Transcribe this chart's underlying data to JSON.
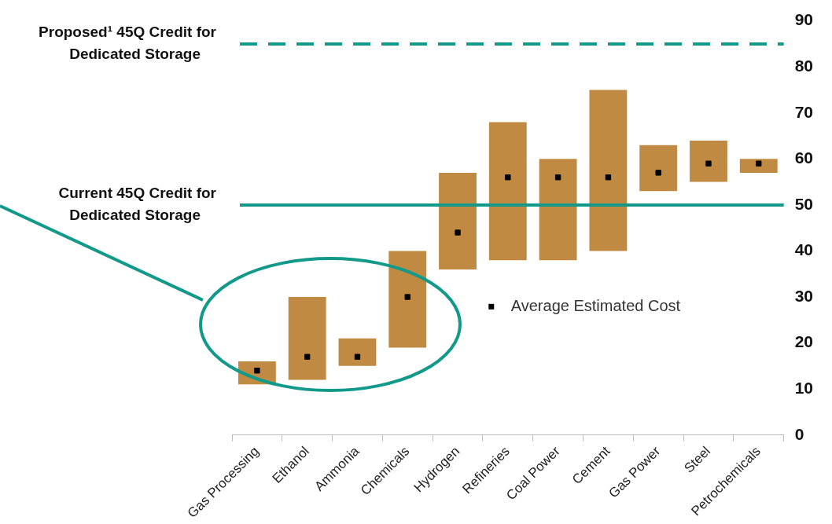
{
  "chart_data": {
    "type": "bar",
    "categories": [
      "Gas Processing",
      "Ethanol",
      "Ammonia",
      "Chemicals",
      "Hydrogen",
      "Refineries",
      "Coal Power",
      "Cement",
      "Gas Power",
      "Steel",
      "Petrochemicals"
    ],
    "series": [
      {
        "color": "#c08a42",
        "base": [
          11,
          12,
          15,
          19,
          36,
          38,
          38,
          40,
          53,
          55,
          57
        ],
        "values": [
          5,
          18,
          6,
          21,
          21,
          30,
          22,
          35,
          10,
          9,
          3
        ]
      },
      {
        "type": "scatter",
        "name": "Average Estimated Cost",
        "color": "#000000",
        "marker": "square",
        "x": [
          "Gas Processing",
          "Ethanol",
          "Ammonia",
          "Chemicals",
          "Hydrogen",
          "Refineries",
          "Coal Power",
          "Cement",
          "Gas Power",
          "Steel",
          "Petrochemicals"
        ],
        "values": [
          14,
          17,
          17,
          30,
          44,
          56,
          56,
          56,
          57,
          59,
          59
        ]
      }
    ],
    "ylim": [
      0,
      90
    ],
    "yticks": [
      0,
      10,
      20,
      30,
      40,
      50,
      60,
      70,
      80,
      90
    ],
    "grid": false,
    "legend": "right",
    "ref_lines": [
      {
        "axis": "y",
        "value": 50,
        "label": "Current 45Q Credit for Dedicated Storage",
        "color": "#13998a",
        "line_style": "solid"
      },
      {
        "axis": "y",
        "value": 85,
        "label": "Proposed¹ 45Q Credit for Dedicated Storage",
        "color": "#13998a",
        "line_style": "dashed"
      }
    ]
  }
}
